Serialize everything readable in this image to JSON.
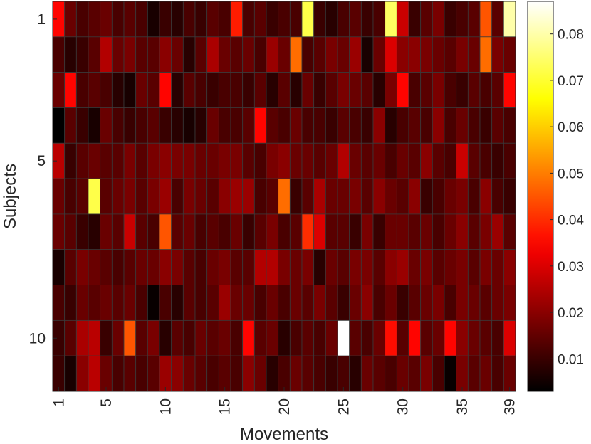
{
  "chart_data": {
    "type": "heatmap",
    "xlabel": "Movements",
    "ylabel": "Subjects",
    "x_tick_labels": [
      "1",
      "5",
      "10",
      "15",
      "20",
      "25",
      "30",
      "35",
      "39"
    ],
    "x_tick_values": [
      1,
      5,
      10,
      15,
      20,
      25,
      30,
      35,
      39
    ],
    "y_tick_labels": [
      "1",
      "5",
      "10"
    ],
    "y_tick_values": [
      1,
      5,
      10
    ],
    "x_range": [
      1,
      40
    ],
    "y_range": [
      1,
      11
    ],
    "colormap": "hot",
    "colorbar": {
      "range": [
        0.003,
        0.087
      ],
      "tick_labels": [
        "0.01",
        "0.02",
        "0.03",
        "0.04",
        "0.05",
        "0.06",
        "0.07",
        "0.08"
      ],
      "tick_values": [
        0.01,
        0.02,
        0.03,
        0.04,
        0.05,
        0.06,
        0.07,
        0.08
      ]
    },
    "grid_color": "#3a3a3a",
    "values": [
      [
        0.035,
        0.016,
        0.012,
        0.014,
        0.016,
        0.012,
        0.014,
        0.012,
        0.006,
        0.01,
        0.008,
        0.012,
        0.01,
        0.014,
        0.012,
        0.038,
        0.012,
        0.014,
        0.01,
        0.012,
        0.012,
        0.072,
        0.01,
        0.008,
        0.012,
        0.014,
        0.01,
        0.012,
        0.074,
        0.028,
        0.01,
        0.014,
        0.018,
        0.01,
        0.012,
        0.014,
        0.045,
        0.014,
        0.08
      ],
      [
        0.012,
        0.008,
        0.01,
        0.014,
        0.025,
        0.016,
        0.018,
        0.014,
        0.014,
        0.02,
        0.016,
        0.008,
        0.014,
        0.024,
        0.016,
        0.014,
        0.016,
        0.012,
        0.022,
        0.016,
        0.048,
        0.012,
        0.014,
        0.018,
        0.016,
        0.022,
        0.006,
        0.016,
        0.03,
        0.02,
        0.02,
        0.018,
        0.016,
        0.014,
        0.018,
        0.016,
        0.048,
        0.018,
        0.016
      ],
      [
        0.016,
        0.035,
        0.012,
        0.014,
        0.012,
        0.008,
        0.006,
        0.016,
        0.014,
        0.035,
        0.008,
        0.014,
        0.012,
        0.01,
        0.012,
        0.012,
        0.01,
        0.014,
        0.008,
        0.014,
        0.008,
        0.016,
        0.01,
        0.014,
        0.018,
        0.016,
        0.014,
        0.008,
        0.018,
        0.035,
        0.012,
        0.014,
        0.018,
        0.012,
        0.01,
        0.014,
        0.012,
        0.014,
        0.035
      ],
      [
        0.003,
        0.014,
        0.01,
        0.006,
        0.016,
        0.012,
        0.01,
        0.012,
        0.014,
        0.01,
        0.008,
        0.006,
        0.008,
        0.016,
        0.012,
        0.012,
        0.014,
        0.035,
        0.014,
        0.012,
        0.016,
        0.012,
        0.012,
        0.01,
        0.014,
        0.012,
        0.01,
        0.02,
        0.008,
        0.012,
        0.014,
        0.012,
        0.02,
        0.012,
        0.016,
        0.012,
        0.01,
        0.014,
        0.012
      ],
      [
        0.026,
        0.01,
        0.014,
        0.016,
        0.014,
        0.014,
        0.018,
        0.014,
        0.018,
        0.02,
        0.018,
        0.018,
        0.016,
        0.016,
        0.018,
        0.018,
        0.014,
        0.012,
        0.018,
        0.02,
        0.016,
        0.016,
        0.014,
        0.016,
        0.025,
        0.016,
        0.014,
        0.016,
        0.012,
        0.016,
        0.014,
        0.02,
        0.014,
        0.012,
        0.028,
        0.014,
        0.012,
        0.01,
        0.012
      ],
      [
        0.016,
        0.012,
        0.014,
        0.072,
        0.014,
        0.016,
        0.018,
        0.014,
        0.018,
        0.022,
        0.012,
        0.018,
        0.016,
        0.014,
        0.02,
        0.022,
        0.022,
        0.012,
        0.014,
        0.048,
        0.01,
        0.014,
        0.024,
        0.016,
        0.016,
        0.018,
        0.014,
        0.02,
        0.016,
        0.014,
        0.02,
        0.01,
        0.012,
        0.016,
        0.018,
        0.012,
        0.02,
        0.012,
        0.01
      ],
      [
        0.016,
        0.014,
        0.01,
        0.008,
        0.016,
        0.014,
        0.028,
        0.014,
        0.012,
        0.045,
        0.014,
        0.016,
        0.012,
        0.014,
        0.012,
        0.016,
        0.01,
        0.014,
        0.018,
        0.012,
        0.014,
        0.04,
        0.03,
        0.014,
        0.014,
        0.01,
        0.018,
        0.01,
        0.016,
        0.016,
        0.014,
        0.016,
        0.012,
        0.016,
        0.02,
        0.014,
        0.018,
        0.022,
        0.014
      ],
      [
        0.006,
        0.014,
        0.018,
        0.016,
        0.014,
        0.012,
        0.014,
        0.016,
        0.016,
        0.02,
        0.018,
        0.014,
        0.012,
        0.016,
        0.018,
        0.014,
        0.014,
        0.025,
        0.025,
        0.018,
        0.016,
        0.018,
        0.008,
        0.016,
        0.014,
        0.018,
        0.018,
        0.014,
        0.02,
        0.022,
        0.016,
        0.018,
        0.014,
        0.016,
        0.018,
        0.014,
        0.018,
        0.016,
        0.02
      ],
      [
        0.012,
        0.01,
        0.016,
        0.014,
        0.016,
        0.014,
        0.016,
        0.012,
        0.004,
        0.012,
        0.008,
        0.014,
        0.012,
        0.014,
        0.022,
        0.016,
        0.016,
        0.012,
        0.016,
        0.012,
        0.016,
        0.014,
        0.018,
        0.014,
        0.01,
        0.016,
        0.02,
        0.012,
        0.016,
        0.01,
        0.014,
        0.016,
        0.018,
        0.012,
        0.018,
        0.016,
        0.014,
        0.016,
        0.018
      ],
      [
        0.01,
        0.014,
        0.024,
        0.026,
        0.01,
        0.016,
        0.045,
        0.014,
        0.018,
        0.008,
        0.014,
        0.012,
        0.016,
        0.014,
        0.016,
        0.012,
        0.035,
        0.014,
        0.016,
        0.008,
        0.012,
        0.014,
        0.012,
        0.016,
        0.087,
        0.014,
        0.012,
        0.016,
        0.036,
        0.014,
        0.035,
        0.014,
        0.016,
        0.035,
        0.02,
        0.016,
        0.014,
        0.012,
        0.03
      ],
      [
        0.01,
        0.006,
        0.02,
        0.026,
        0.016,
        0.012,
        0.014,
        0.012,
        0.014,
        0.022,
        0.02,
        0.016,
        0.014,
        0.012,
        0.014,
        0.012,
        0.02,
        0.016,
        0.008,
        0.012,
        0.016,
        0.014,
        0.012,
        0.01,
        0.012,
        0.008,
        0.016,
        0.014,
        0.012,
        0.016,
        0.014,
        0.018,
        0.012,
        0.004,
        0.018,
        0.014,
        0.016,
        0.012,
        0.016
      ]
    ]
  }
}
